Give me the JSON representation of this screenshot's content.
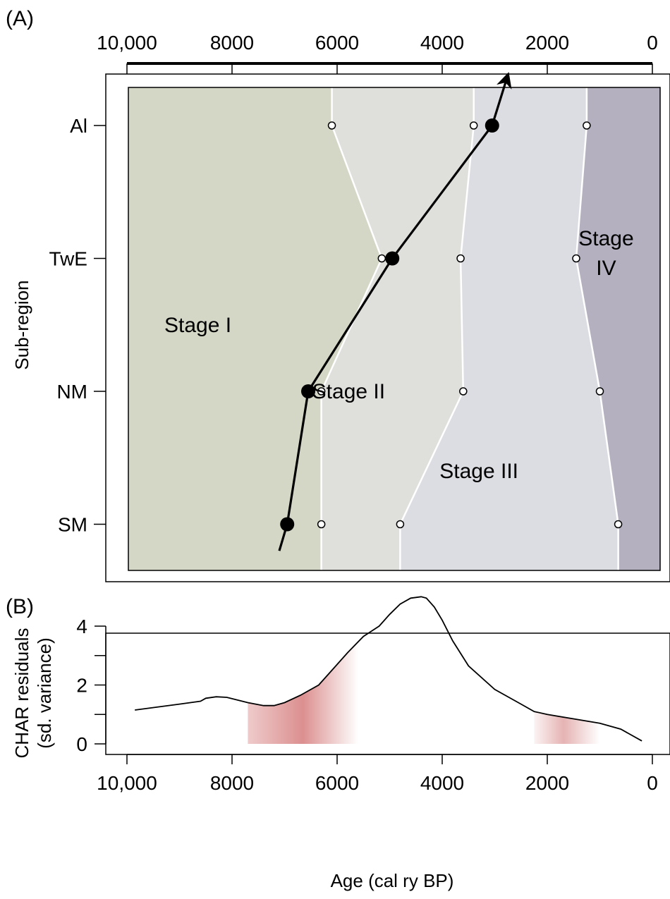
{
  "chart_data": [
    {
      "panel": "(A)",
      "type": "stage-map",
      "xlim": [
        10000,
        0
      ],
      "x_axis_position": "top",
      "x_ticks": [
        10000,
        8000,
        6000,
        4000,
        2000,
        0
      ],
      "x_tick_labels": [
        "10,000",
        "8000",
        "6000",
        "4000",
        "2000",
        "0"
      ],
      "ylabel": "Sub-region",
      "y_categories": [
        "Al",
        "TwE",
        "NM",
        "SM"
      ],
      "stages": [
        {
          "label": "Stage I",
          "color": "#d4d7c6",
          "anchor": {
            "age": 8650,
            "region": 1.5
          }
        },
        {
          "label": "Stage II",
          "color": "#dfdfdc",
          "anchor": {
            "age": 5780,
            "region": 2.0
          }
        },
        {
          "label": "Stage III",
          "color": "#dcdce3",
          "anchor": {
            "age": 3300,
            "region": 2.6
          }
        },
        {
          "label": "Stage",
          "label2": "IV",
          "color": "#b4b0c0",
          "anchor": {
            "age": 880,
            "region": 0.85
          }
        }
      ],
      "boundaries": [
        [
          6100,
          5150,
          6300,
          6300
        ],
        [
          3400,
          3650,
          3600,
          4800
        ],
        [
          1250,
          1450,
          1000,
          650
        ]
      ],
      "colors": {
        "stage_I": "#d4d7c6",
        "stage_II": "#dfdfdc",
        "stage_III": "#dcdce3",
        "stage_IV": "#b4b0c0"
      },
      "trend_points": [
        {
          "region": "Al",
          "age": 3050
        },
        {
          "region": "TwE",
          "age": 4950
        },
        {
          "region": "NM",
          "age": 6550
        },
        {
          "region": "SM",
          "age": 6950
        }
      ],
      "trend_line": {
        "start_age": 7100,
        "start_region": 3.2,
        "end_age": 2750,
        "end_region": -0.38
      }
    },
    {
      "panel": "(B)",
      "type": "line",
      "xlim": [
        10000,
        0
      ],
      "ylim": [
        0,
        5
      ],
      "x_ticks": [
        10000,
        8000,
        6000,
        4000,
        2000,
        0
      ],
      "x_tick_labels": [
        "10,000",
        "8000",
        "6000",
        "4000",
        "2000",
        "0"
      ],
      "y_ticks": [
        0,
        1,
        2,
        3,
        4
      ],
      "y_tick_labels": [
        "0",
        "",
        "2",
        "",
        "4"
      ],
      "xlabel": "Age (cal ry BP)",
      "ylabel_line1": "CHAR residuals",
      "ylabel_line2": "(sd. variance)",
      "series": [
        {
          "x": [
            9850,
            9000,
            8600,
            8500,
            8300,
            8100,
            7700,
            7400,
            7200,
            7000,
            6700,
            6350,
            6100,
            5800,
            5500,
            5200,
            5000,
            4800,
            4600,
            4400,
            4300,
            4150,
            4000,
            3800,
            3500,
            3000,
            2500,
            2250,
            2000,
            1500,
            1000,
            600,
            200
          ],
          "y": [
            1.15,
            1.35,
            1.45,
            1.55,
            1.6,
            1.58,
            1.4,
            1.3,
            1.3,
            1.4,
            1.65,
            2.0,
            2.5,
            3.1,
            3.65,
            4.0,
            4.4,
            4.75,
            4.95,
            5.0,
            4.95,
            4.65,
            4.2,
            3.5,
            2.65,
            1.85,
            1.35,
            1.1,
            1.0,
            0.85,
            0.7,
            0.5,
            0.1
          ]
        }
      ],
      "shaded_periods": [
        {
          "from": 7700,
          "to": 5600,
          "color": "#d06a6a"
        },
        {
          "from": 2250,
          "to": 1000,
          "color": "#d88a8a"
        }
      ]
    }
  ]
}
